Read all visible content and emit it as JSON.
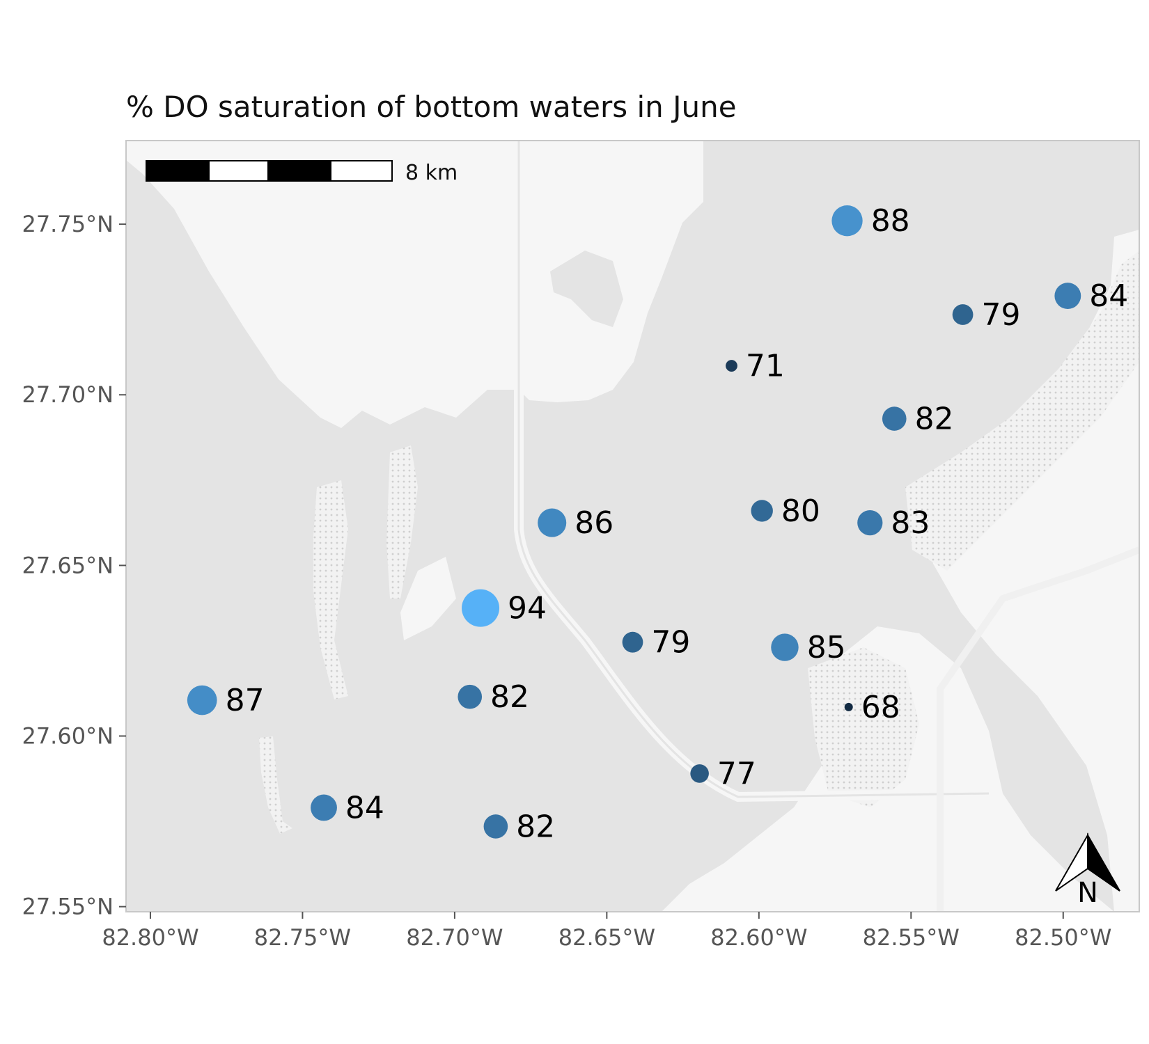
{
  "chart_data": {
    "type": "scatter",
    "title": "% DO saturation of bottom waters in June",
    "xlabel": "",
    "ylabel": "",
    "xlim": [
      -82.808,
      -82.475
    ],
    "ylim": [
      27.5485,
      27.7745
    ],
    "x_ticks": [
      {
        "value": -82.8,
        "label": "82.80°W"
      },
      {
        "value": -82.75,
        "label": "82.75°W"
      },
      {
        "value": -82.7,
        "label": "82.70°W"
      },
      {
        "value": -82.65,
        "label": "82.65°W"
      },
      {
        "value": -82.6,
        "label": "82.60°W"
      },
      {
        "value": -82.55,
        "label": "82.55°W"
      },
      {
        "value": -82.5,
        "label": "82.50°W"
      }
    ],
    "y_ticks": [
      {
        "value": 27.75,
        "label": "27.75°N"
      },
      {
        "value": 27.7,
        "label": "27.70°N"
      },
      {
        "value": 27.65,
        "label": "27.65°N"
      },
      {
        "value": 27.6,
        "label": "27.60°N"
      },
      {
        "value": 27.55,
        "label": "27.55°N"
      }
    ],
    "points": [
      {
        "lon": -82.571,
        "lat": 27.751,
        "value": 88,
        "label": "88"
      },
      {
        "lon": -82.4985,
        "lat": 27.729,
        "value": 84,
        "label": "84"
      },
      {
        "lon": -82.533,
        "lat": 27.7235,
        "value": 79,
        "label": "79"
      },
      {
        "lon": -82.609,
        "lat": 27.7085,
        "value": 71,
        "label": "71"
      },
      {
        "lon": -82.5555,
        "lat": 27.693,
        "value": 82,
        "label": "82"
      },
      {
        "lon": -82.599,
        "lat": 27.666,
        "value": 80,
        "label": "80"
      },
      {
        "lon": -82.5635,
        "lat": 27.6625,
        "value": 83,
        "label": "83"
      },
      {
        "lon": -82.668,
        "lat": 27.6625,
        "value": 86,
        "label": "86"
      },
      {
        "lon": -82.6915,
        "lat": 27.6375,
        "value": 94,
        "label": "94"
      },
      {
        "lon": -82.6415,
        "lat": 27.6275,
        "value": 79,
        "label": "79"
      },
      {
        "lon": -82.5915,
        "lat": 27.626,
        "value": 85,
        "label": "85"
      },
      {
        "lon": -82.783,
        "lat": 27.6105,
        "value": 87,
        "label": "87"
      },
      {
        "lon": -82.695,
        "lat": 27.6115,
        "value": 82,
        "label": "82"
      },
      {
        "lon": -82.5705,
        "lat": 27.6085,
        "value": 68,
        "label": "68"
      },
      {
        "lon": -82.6195,
        "lat": 27.589,
        "value": 77,
        "label": "77"
      },
      {
        "lon": -82.743,
        "lat": 27.579,
        "value": 84,
        "label": "84"
      },
      {
        "lon": -82.6865,
        "lat": 27.5735,
        "value": 82,
        "label": "82"
      }
    ],
    "value_range": [
      68,
      94
    ],
    "color_low": "#132b43",
    "color_high": "#56b1f7",
    "legend": "none"
  },
  "scale_bar": {
    "label": "8 km"
  },
  "north_arrow": {
    "label": "N"
  },
  "colors": {
    "panel_bg": "#e4e4e4",
    "land": "#f6f6f6",
    "road": "#ffffff",
    "panel_border": "#c8c8c8"
  }
}
